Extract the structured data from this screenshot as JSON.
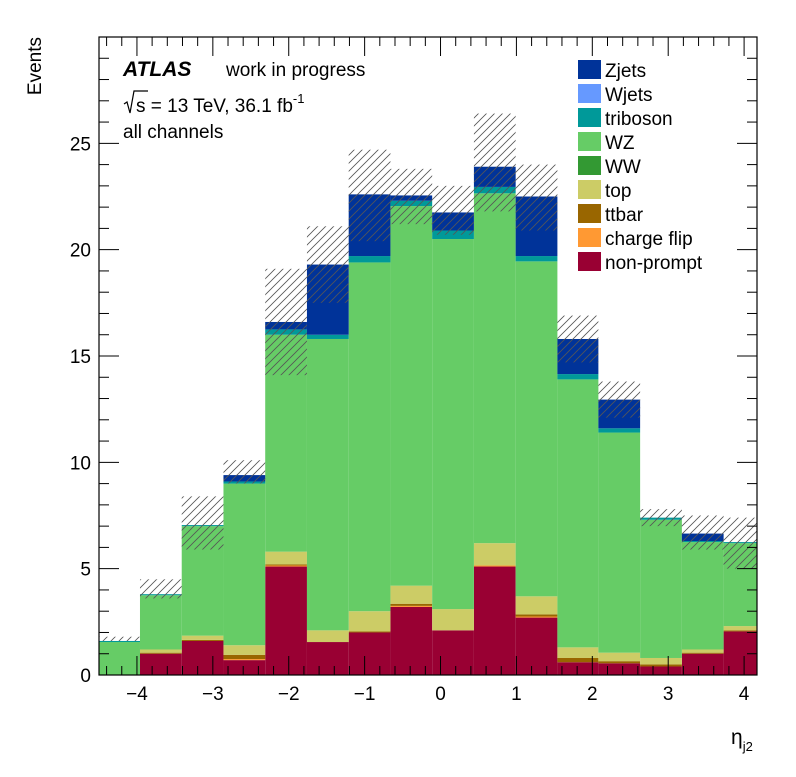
{
  "chart_data": {
    "type": "bar",
    "stacked": true,
    "ylabel": "Events",
    "xlabel": "η",
    "xlabel_sub": "j2",
    "xlim": [
      -4.5,
      4.17
    ],
    "ylim": [
      0,
      30
    ],
    "xticks": [
      -4,
      -3,
      -2,
      -1,
      0,
      1,
      2,
      3,
      4
    ],
    "xtick_labels": [
      "−4",
      "−3",
      "−2",
      "−1",
      "0",
      "1",
      "2",
      "3",
      "4"
    ],
    "yticks": [
      0,
      5,
      10,
      15,
      20,
      25
    ],
    "yticks_labels": [
      "0",
      "5",
      "10",
      "15",
      "20",
      "25"
    ],
    "bin_edges": [
      -4.5,
      -3.96,
      -3.41,
      -2.86,
      -2.31,
      -1.76,
      -1.21,
      -0.66,
      -0.11,
      0.44,
      0.99,
      1.54,
      2.08,
      2.63,
      3.18,
      3.73,
      4.17
    ],
    "annotations": {
      "atlas": "ATLAS",
      "status": "work in progress",
      "energy_prefix": "s",
      "energy_text": " = 13 TeV, 36.1 fb",
      "energy_sup": "-1",
      "channel": "all channels"
    },
    "legend": {
      "position": "top-right"
    },
    "series": [
      {
        "name": "non-prompt",
        "color": "#990033",
        "values": [
          0.0,
          1.0,
          1.6,
          0.7,
          5.1,
          1.55,
          2.0,
          3.2,
          2.1,
          5.1,
          2.7,
          0.6,
          0.55,
          0.4,
          1.0,
          2.05
        ]
      },
      {
        "name": "charge flip",
        "color": "#ff9933",
        "values": [
          0.0,
          0.0,
          0.0,
          0.05,
          0.05,
          0.0,
          0.0,
          0.05,
          0.0,
          0.05,
          0.05,
          0.0,
          0.0,
          0.0,
          0.0,
          0.0
        ]
      },
      {
        "name": "ttbar",
        "color": "#996600",
        "values": [
          0.0,
          0.05,
          0.05,
          0.2,
          0.05,
          0.0,
          0.05,
          0.1,
          0.0,
          0.0,
          0.1,
          0.2,
          0.1,
          0.1,
          0.05,
          0.05
        ]
      },
      {
        "name": "top",
        "color": "#cccc66",
        "values": [
          0.0,
          0.15,
          0.2,
          0.45,
          0.6,
          0.55,
          0.95,
          0.85,
          1.0,
          1.05,
          0.85,
          0.5,
          0.4,
          0.3,
          0.15,
          0.2
        ]
      },
      {
        "name": "WW",
        "color": "#339933",
        "values": [
          0.0,
          0.0,
          0.0,
          0.0,
          0.0,
          0.0,
          0.0,
          0.0,
          0.0,
          0.0,
          0.0,
          0.0,
          0.0,
          0.0,
          0.0,
          0.0
        ]
      },
      {
        "name": "WZ",
        "color": "#66cc66",
        "values": [
          1.55,
          2.55,
          5.15,
          7.6,
          10.2,
          13.7,
          16.4,
          17.85,
          17.4,
          16.45,
          15.75,
          12.6,
          10.35,
          6.5,
          5.05,
          3.9
        ]
      },
      {
        "name": "triboson",
        "color": "#009999",
        "values": [
          0.05,
          0.05,
          0.05,
          0.1,
          0.25,
          0.2,
          0.3,
          0.25,
          0.4,
          0.3,
          0.25,
          0.25,
          0.2,
          0.1,
          0.05,
          0.05
        ]
      },
      {
        "name": "Wjets",
        "color": "#6699ff",
        "values": [
          0.0,
          0.0,
          0.0,
          0.0,
          0.0,
          0.0,
          0.0,
          0.0,
          0.0,
          0.0,
          0.0,
          0.0,
          0.0,
          0.0,
          0.0,
          0.0
        ]
      },
      {
        "name": "Zjets",
        "color": "#003399",
        "values": [
          0.0,
          0.0,
          0.0,
          0.3,
          0.35,
          3.3,
          2.9,
          0.25,
          0.85,
          0.95,
          2.8,
          1.65,
          1.35,
          0.0,
          0.35,
          0.0
        ]
      }
    ],
    "uncertainty_band": {
      "up": [
        1.8,
        4.5,
        8.4,
        10.1,
        19.1,
        21.1,
        24.7,
        23.8,
        23.0,
        26.4,
        24.0,
        16.9,
        13.8,
        7.8,
        7.5,
        7.4
      ],
      "down": [
        1.6,
        3.6,
        5.9,
        9.0,
        14.1,
        17.5,
        20.4,
        21.2,
        20.7,
        21.8,
        20.9,
        14.7,
        12.1,
        7.0,
        5.9,
        5.0
      ]
    },
    "legend_order": [
      "Zjets",
      "Wjets",
      "triboson",
      "WZ",
      "WW",
      "top",
      "ttbar",
      "charge flip",
      "non-prompt"
    ]
  }
}
